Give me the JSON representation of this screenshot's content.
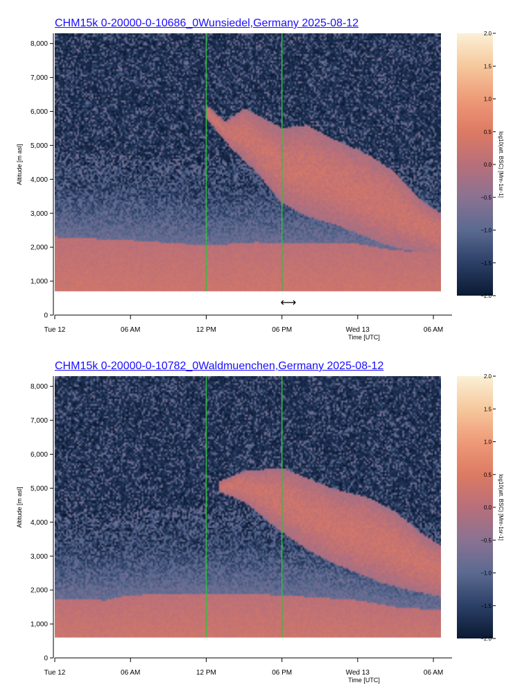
{
  "nav_arrow": "⟷",
  "color_scale": {
    "min": -2.0,
    "max": 2.0,
    "stops": [
      "#0a1a33",
      "#2c3f66",
      "#5b6a91",
      "#8a7292",
      "#b86f7a",
      "#dd7a63",
      "#ee9a78",
      "#f6c89c",
      "#fbf0d6"
    ]
  },
  "marker_color": "#2fbf3f",
  "chart_data": [
    {
      "type": "heatmap",
      "title": "CHM15k 0-20000-0-10686_0Wunsiedel,Germany 2025-08-12",
      "xlabel": "Time [UTC]",
      "ylabel": "Altitude [m asl]",
      "colorbar_label": "log10(att. BSC) [Mm-1sr-1]",
      "x_ticks": [
        "Tue 12",
        "06 AM",
        "12 PM",
        "06 PM",
        "Wed 13",
        "06 AM"
      ],
      "x_tick_hours": [
        0,
        6,
        12,
        18,
        24,
        30
      ],
      "x_range_hours": [
        0,
        30.6
      ],
      "y_ticks": [
        "0",
        "1,000",
        "2,000",
        "3,000",
        "4,000",
        "5,000",
        "6,000",
        "7,000",
        "8,000"
      ],
      "y_tick_values": [
        0,
        1000,
        2000,
        3000,
        4000,
        5000,
        6000,
        7000,
        8000
      ],
      "ylim": [
        0,
        8300
      ],
      "data_bottom_m": 700,
      "colorbar_ticks": [
        "2.0",
        "1.5",
        "1.0",
        "0.5",
        "0.0",
        "−0.5",
        "−1.0",
        "−1.5",
        "−2.0"
      ],
      "colorbar_values": [
        2.0,
        1.5,
        1.0,
        0.5,
        0.0,
        -0.5,
        -1.0,
        -1.5,
        -2.0
      ],
      "vertical_markers_hours": [
        12,
        18
      ],
      "boundary_layer_top_m": [
        [
          0,
          2300
        ],
        [
          6,
          2200
        ],
        [
          12,
          2050
        ],
        [
          16,
          2150
        ],
        [
          18,
          2100
        ],
        [
          24,
          2100
        ],
        [
          27,
          1900
        ],
        [
          30.6,
          1850
        ]
      ],
      "cloud_top_m": [
        [
          12,
          6200
        ],
        [
          13.5,
          5700
        ],
        [
          15,
          6100
        ],
        [
          18,
          5500
        ],
        [
          20,
          5600
        ],
        [
          22,
          5200
        ],
        [
          25,
          4700
        ],
        [
          27,
          4200
        ],
        [
          29,
          3400
        ],
        [
          30.6,
          3000
        ]
      ],
      "cloud_base_m": [
        [
          12,
          5800
        ],
        [
          14,
          4900
        ],
        [
          16,
          4200
        ],
        [
          18,
          3300
        ],
        [
          20,
          2900
        ],
        [
          22,
          2700
        ],
        [
          24,
          2400
        ],
        [
          26,
          2100
        ],
        [
          28,
          1900
        ],
        [
          30.6,
          1800
        ]
      ]
    },
    {
      "type": "heatmap",
      "title": "CHM15k 0-20000-0-10782_0Waldmuenchen,Germany 2025-08-12",
      "xlabel": "Time [UTC]",
      "ylabel": "Altitude [m asl]",
      "colorbar_label": "log10(att. BSC) [Mm-1sr-1]",
      "x_ticks": [
        "Tue 12",
        "06 AM",
        "12 PM",
        "06 PM",
        "Wed 13",
        "06 AM"
      ],
      "x_tick_hours": [
        0,
        6,
        12,
        18,
        24,
        30
      ],
      "x_range_hours": [
        0,
        30.6
      ],
      "y_ticks": [
        "0",
        "1,000",
        "2,000",
        "3,000",
        "4,000",
        "5,000",
        "6,000",
        "7,000",
        "8,000"
      ],
      "y_tick_values": [
        0,
        1000,
        2000,
        3000,
        4000,
        5000,
        6000,
        7000,
        8000
      ],
      "ylim": [
        0,
        8300
      ],
      "data_bottom_m": 600,
      "colorbar_ticks": [
        "2.0",
        "1.5",
        "1.0",
        "0.5",
        "0.0",
        "−0.5",
        "−1.0",
        "−1.5",
        "−2.0"
      ],
      "colorbar_values": [
        2.0,
        1.5,
        1.0,
        0.5,
        0.0,
        -0.5,
        -1.0,
        -1.5,
        -2.0
      ],
      "vertical_markers_hours": [
        12,
        18
      ],
      "boundary_layer_top_m": [
        [
          0,
          1750
        ],
        [
          4,
          1700
        ],
        [
          6,
          1850
        ],
        [
          12,
          1900
        ],
        [
          18,
          1850
        ],
        [
          24,
          1700
        ],
        [
          27,
          1500
        ],
        [
          30.6,
          1400
        ]
      ],
      "cloud_top_m": [
        [
          13,
          5200
        ],
        [
          15,
          5500
        ],
        [
          18,
          5600
        ],
        [
          20,
          5300
        ],
        [
          22,
          5000
        ],
        [
          25,
          4700
        ],
        [
          27,
          4300
        ],
        [
          29,
          3700
        ],
        [
          30.6,
          3300
        ]
      ],
      "cloud_base_m": [
        [
          13,
          4900
        ],
        [
          15,
          4600
        ],
        [
          18,
          3700
        ],
        [
          20,
          3200
        ],
        [
          22,
          2800
        ],
        [
          24,
          2500
        ],
        [
          26,
          2200
        ],
        [
          28,
          2000
        ],
        [
          30.6,
          1800
        ]
      ]
    }
  ]
}
